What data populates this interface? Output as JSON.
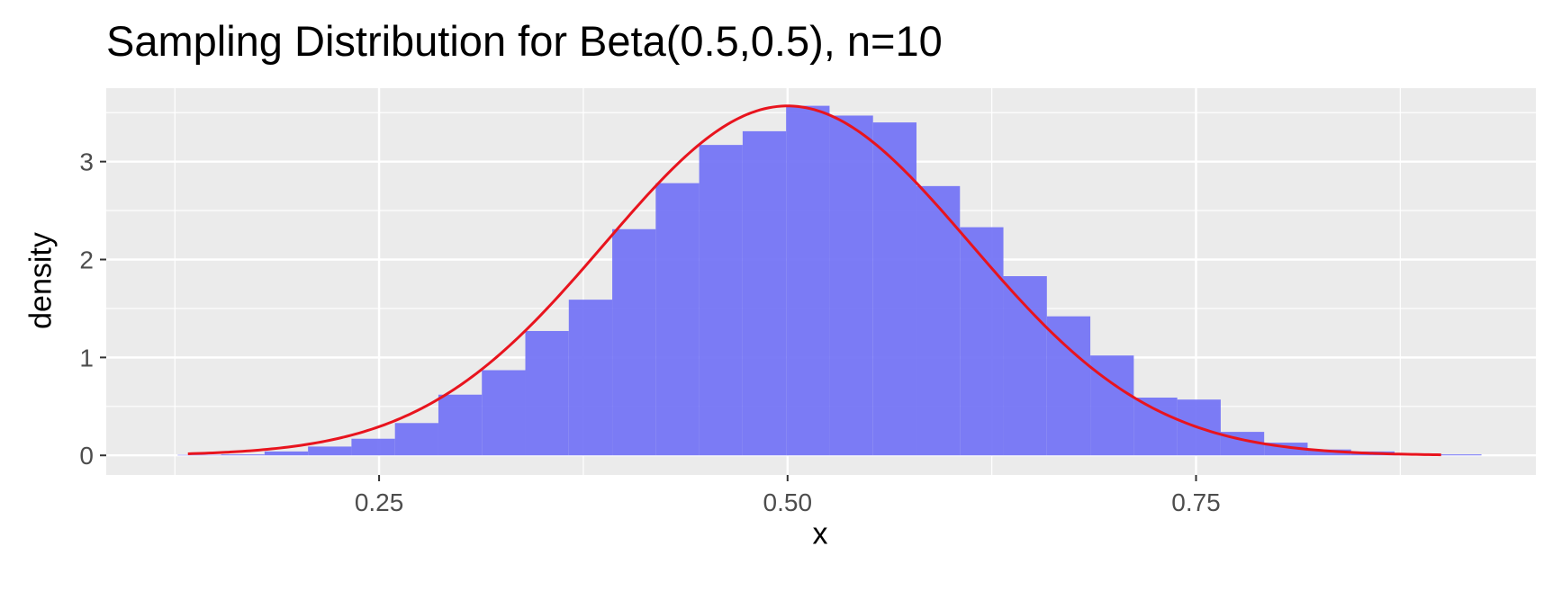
{
  "chart_data": {
    "type": "bar",
    "title": "Sampling Distribution for Beta(0.5,0.5), n=10",
    "xlabel": "x",
    "ylabel": "density",
    "xlim": [
      0.083,
      0.958
    ],
    "ylim": [
      -0.2,
      3.75
    ],
    "grid": true,
    "legend": "none",
    "x_ticks": [
      {
        "value": 0.25,
        "label": "0.25"
      },
      {
        "value": 0.5,
        "label": "0.50"
      },
      {
        "value": 0.75,
        "label": "0.75"
      }
    ],
    "y_ticks": [
      {
        "value": 0,
        "label": "0"
      },
      {
        "value": 1,
        "label": "1"
      },
      {
        "value": 2,
        "label": "2"
      },
      {
        "value": 3,
        "label": "3"
      }
    ],
    "histogram": {
      "bin_width": 0.0266,
      "color": "#7575f5",
      "bins": [
        {
          "x0": 0.1267,
          "height": 0.005
        },
        {
          "x0": 0.1533,
          "height": 0.01
        },
        {
          "x0": 0.1799,
          "height": 0.04
        },
        {
          "x0": 0.2065,
          "height": 0.09
        },
        {
          "x0": 0.2331,
          "height": 0.17
        },
        {
          "x0": 0.2597,
          "height": 0.33
        },
        {
          "x0": 0.2863,
          "height": 0.62
        },
        {
          "x0": 0.3129,
          "height": 0.87
        },
        {
          "x0": 0.3395,
          "height": 1.27
        },
        {
          "x0": 0.3661,
          "height": 1.59
        },
        {
          "x0": 0.3927,
          "height": 2.31
        },
        {
          "x0": 0.4193,
          "height": 2.78
        },
        {
          "x0": 0.4459,
          "height": 3.17
        },
        {
          "x0": 0.4725,
          "height": 3.31
        },
        {
          "x0": 0.4991,
          "height": 3.57
        },
        {
          "x0": 0.5257,
          "height": 3.47
        },
        {
          "x0": 0.5523,
          "height": 3.4
        },
        {
          "x0": 0.5789,
          "height": 2.75
        },
        {
          "x0": 0.6055,
          "height": 2.33
        },
        {
          "x0": 0.6321,
          "height": 1.83
        },
        {
          "x0": 0.6587,
          "height": 1.42
        },
        {
          "x0": 0.6853,
          "height": 1.02
        },
        {
          "x0": 0.7119,
          "height": 0.59
        },
        {
          "x0": 0.7385,
          "height": 0.57
        },
        {
          "x0": 0.7651,
          "height": 0.24
        },
        {
          "x0": 0.7917,
          "height": 0.13
        },
        {
          "x0": 0.8183,
          "height": 0.06
        },
        {
          "x0": 0.8449,
          "height": 0.04
        },
        {
          "x0": 0.8715,
          "height": 0.02
        },
        {
          "x0": 0.8981,
          "height": 0.01
        }
      ]
    },
    "curve": {
      "color": "#e8141e",
      "description_type": "normal density",
      "mean": 0.5,
      "sd": 0.1118,
      "x_range": [
        0.133,
        0.9
      ]
    }
  }
}
